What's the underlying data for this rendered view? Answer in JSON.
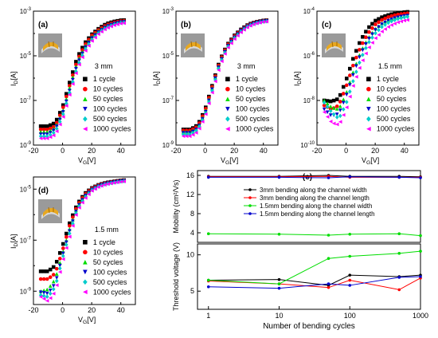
{
  "figure": {
    "colors": {
      "1 cycle": "#000000",
      "10 cycles": "#ff0000",
      "50 cycles": "#00dd00",
      "100 cycles": "#0000cc",
      "500 cycles": "#00cccc",
      "1000 cycles": "#ff00ff",
      "3mm bending along the channel width": "#000000",
      "3mm bending along the channel length": "#ff0000",
      "1.5mm bending along the channel width": "#00dd00",
      "1.5mm bending along the channel length": "#0000cc"
    },
    "markers": [
      "square",
      "circle",
      "triangle-up",
      "triangle-down",
      "diamond",
      "triangle-left"
    ],
    "legend_entries": [
      "1 cycle",
      "10 cycles",
      "50 cycles",
      "100 cycles",
      "500 cycles",
      "1000 cycles"
    ]
  },
  "chart_data": [
    {
      "type": "scatter",
      "panel_label": "(a)",
      "annotation": "3 mm",
      "xlabel": "V_G[V]",
      "ylabel": "I_D[A]",
      "y_scale": "log",
      "xlim": [
        -20,
        50
      ],
      "ylim": [
        1e-09,
        0.001
      ],
      "x_ticks": [
        "-20",
        "0",
        "20",
        "40"
      ],
      "y_ticks": [
        "10^-9",
        "10^-7",
        "10^-5",
        "10^-3"
      ],
      "legend": "lower-right",
      "series": [
        {
          "name": "1 cycle",
          "x": [
            -15,
            -10,
            -5,
            0,
            5,
            10,
            15,
            20,
            25,
            30,
            35,
            40,
            44
          ],
          "y": [
            7e-09,
            7e-09,
            1e-08,
            5e-08,
            7e-07,
            8e-06,
            3.5e-05,
            9e-05,
            0.00017,
            0.00027,
            0.00034,
            0.00039,
            0.0004
          ]
        },
        {
          "name": "10 cycles",
          "x": [
            -15,
            -10,
            -5,
            0,
            5,
            10,
            15,
            20,
            25,
            30,
            35,
            40,
            44
          ],
          "y": [
            5e-09,
            5e-09,
            7e-09,
            4e-08,
            5e-07,
            6e-06,
            2.8e-05,
            8e-05,
            0.00015,
            0.00024,
            0.00031,
            0.00036,
            0.00038
          ]
        },
        {
          "name": "50 cycles",
          "x": [
            -15,
            -10,
            -5,
            0,
            5,
            10,
            15,
            20,
            25,
            30,
            35,
            40,
            44
          ],
          "y": [
            4e-09,
            4e-09,
            6e-09,
            3e-08,
            4e-07,
            5e-06,
            2.4e-05,
            7e-05,
            0.00014,
            0.00022,
            0.00029,
            0.00034,
            0.00036
          ]
        },
        {
          "name": "100 cycles",
          "x": [
            -15,
            -10,
            -5,
            0,
            5,
            10,
            15,
            20,
            25,
            30,
            35,
            40,
            44
          ],
          "y": [
            3e-09,
            3e-09,
            5e-09,
            2.5e-08,
            3e-07,
            4e-06,
            2e-05,
            6e-05,
            0.00012,
            0.0002,
            0.00027,
            0.00032,
            0.00034
          ]
        },
        {
          "name": "500 cycles",
          "x": [
            -15,
            -10,
            -5,
            0,
            5,
            10,
            15,
            20,
            25,
            30,
            35,
            40,
            44
          ],
          "y": [
            2.5e-09,
            2.5e-09,
            4e-09,
            2e-08,
            2.5e-07,
            3e-06,
            1.7e-05,
            5e-05,
            0.00011,
            0.00018,
            0.00025,
            0.0003,
            0.00032
          ]
        },
        {
          "name": "1000 cycles",
          "x": [
            -15,
            -10,
            -5,
            0,
            5,
            10,
            15,
            20,
            25,
            30,
            35,
            40,
            44
          ],
          "y": [
            2e-09,
            2e-09,
            3e-09,
            1.5e-08,
            2e-07,
            2.5e-06,
            1.4e-05,
            4.5e-05,
            0.0001,
            0.00017,
            0.00023,
            0.00028,
            0.0003
          ]
        }
      ]
    },
    {
      "type": "scatter",
      "panel_label": "(b)",
      "annotation": "3 mm",
      "xlabel": "V_G[V]",
      "ylabel": "I_D[A]",
      "y_scale": "log",
      "xlim": [
        -20,
        50
      ],
      "ylim": [
        1e-09,
        0.001
      ],
      "x_ticks": [
        "-20",
        "0",
        "20",
        "40"
      ],
      "y_ticks": [
        "10^-9",
        "10^-7",
        "10^-5",
        "10^-3"
      ],
      "legend": "lower-right",
      "series": [
        {
          "name": "1 cycle",
          "x": [
            -15,
            -10,
            -5,
            0,
            5,
            10,
            15,
            20,
            25,
            30,
            35,
            40,
            44
          ],
          "y": [
            5e-09,
            5e-09,
            8e-09,
            4e-08,
            5e-07,
            6e-06,
            3e-05,
            8e-05,
            0.00016,
            0.00026,
            0.00033,
            0.00038,
            0.0004
          ]
        },
        {
          "name": "10 cycles",
          "x": [
            -15,
            -10,
            -5,
            0,
            5,
            10,
            15,
            20,
            25,
            30,
            35,
            40,
            44
          ],
          "y": [
            4.5e-09,
            4.5e-09,
            7e-09,
            3.5e-08,
            4.5e-07,
            5.5e-06,
            2.8e-05,
            7.5e-05,
            0.00015,
            0.00025,
            0.00032,
            0.00037,
            0.00039
          ]
        },
        {
          "name": "50 cycles",
          "x": [
            -15,
            -10,
            -5,
            0,
            5,
            10,
            15,
            20,
            25,
            30,
            35,
            40,
            44
          ],
          "y": [
            4e-09,
            4e-09,
            6e-09,
            3e-08,
            4e-07,
            5e-06,
            2.6e-05,
            7e-05,
            0.000145,
            0.00024,
            0.00031,
            0.00036,
            0.00038
          ]
        },
        {
          "name": "100 cycles",
          "x": [
            -15,
            -10,
            -5,
            0,
            5,
            10,
            15,
            20,
            25,
            30,
            35,
            40,
            44
          ],
          "y": [
            3.5e-09,
            3.5e-09,
            5.5e-09,
            2.5e-08,
            3.5e-07,
            4.5e-06,
            2.4e-05,
            6.5e-05,
            0.00014,
            0.00023,
            0.0003,
            0.00035,
            0.00037
          ]
        },
        {
          "name": "500 cycles",
          "x": [
            -15,
            -10,
            -5,
            0,
            5,
            10,
            15,
            20,
            25,
            30,
            35,
            40,
            44
          ],
          "y": [
            3e-09,
            3e-09,
            5e-09,
            2.2e-08,
            3e-07,
            4e-06,
            2.2e-05,
            6e-05,
            0.00013,
            0.00022,
            0.00029,
            0.00034,
            0.00036
          ]
        },
        {
          "name": "1000 cycles",
          "x": [
            -15,
            -10,
            -5,
            0,
            5,
            10,
            15,
            20,
            25,
            30,
            35,
            40,
            44
          ],
          "y": [
            2.5e-09,
            2.5e-09,
            4e-09,
            2e-08,
            2.5e-07,
            3.5e-06,
            2e-05,
            5.5e-05,
            0.00012,
            0.00021,
            0.00028,
            0.00033,
            0.00035
          ]
        }
      ]
    },
    {
      "type": "scatter",
      "panel_label": "(c)",
      "annotation": "1.5 mm",
      "xlabel": "V_G[V]",
      "ylabel": "I_D[A]",
      "y_scale": "log",
      "xlim": [
        -20,
        50
      ],
      "ylim": [
        1e-10,
        0.0001
      ],
      "x_ticks": [
        "-20",
        "0",
        "20",
        "40"
      ],
      "y_ticks": [
        "10^-10",
        "10^-8",
        "10^-6",
        "10^-4"
      ],
      "legend": "lower-right",
      "series": [
        {
          "name": "1 cycle",
          "x": [
            -15,
            -10,
            -5,
            0,
            5,
            10,
            15,
            20,
            25,
            30,
            35,
            40,
            44
          ],
          "y": [
            1e-08,
            9e-09,
            1.2e-08,
            8e-08,
            8e-07,
            5e-06,
            1.7e-05,
            3.7e-05,
            5.5e-05,
            7e-05,
            8.2e-05,
            9e-05,
            9.5e-05
          ]
        },
        {
          "name": "10 cycles",
          "x": [
            -15,
            -10,
            -5,
            0,
            5,
            10,
            15,
            20,
            25,
            30,
            35,
            40,
            44
          ],
          "y": [
            6e-09,
            4e-09,
            6e-09,
            4e-08,
            4e-07,
            2.5e-06,
            1e-05,
            2.5e-05,
            4.2e-05,
            5.8e-05,
            7e-05,
            7.8e-05,
            8.2e-05
          ]
        },
        {
          "name": "50 cycles",
          "x": [
            -15,
            -10,
            -5,
            0,
            5,
            10,
            15,
            20,
            25,
            30,
            35,
            40,
            44
          ],
          "y": [
            1e-08,
            5e-09,
            4e-09,
            2e-08,
            2e-07,
            1.5e-06,
            6e-06,
            1.6e-05,
            3e-05,
            4.3e-05,
            5.5e-05,
            6.3e-05,
            6.8e-05
          ]
        },
        {
          "name": "100 cycles",
          "x": [
            -15,
            -10,
            -5,
            0,
            5,
            10,
            15,
            20,
            25,
            30,
            35,
            40,
            44
          ],
          "y": [
            4e-09,
            2e-09,
            2.5e-09,
            1.5e-08,
            1.5e-07,
            1.2e-06,
            5e-06,
            1.4e-05,
            2.7e-05,
            4e-05,
            5.2e-05,
            6e-05,
            6.5e-05
          ]
        },
        {
          "name": "500 cycles",
          "x": [
            -15,
            -10,
            -5,
            0,
            5,
            10,
            15,
            20,
            25,
            30,
            35,
            40,
            44
          ],
          "y": [
            8e-09,
            3e-09,
            1.5e-09,
            7e-09,
            8e-08,
            7e-07,
            3.5e-06,
            1e-05,
            2.1e-05,
            3.3e-05,
            4.4e-05,
            5.3e-05,
            5.8e-05
          ]
        },
        {
          "name": "1000 cycles",
          "x": [
            -15,
            -10,
            -5,
            0,
            5,
            10,
            15,
            20,
            25,
            30,
            35,
            40,
            44
          ],
          "y": [
            3e-09,
            1e-09,
            8e-10,
            4e-09,
            5e-08,
            4e-07,
            2e-06,
            6e-06,
            1.3e-05,
            2.2e-05,
            3.1e-05,
            3.8e-05,
            4.2e-05
          ]
        }
      ]
    },
    {
      "type": "scatter",
      "panel_label": "(d)",
      "annotation": "1.5 mm",
      "xlabel": "V_G[V]",
      "ylabel": "I_D[A]",
      "y_scale": "log",
      "xlim": [
        -20,
        50
      ],
      "ylim": [
        3e-10,
        3e-05
      ],
      "x_ticks": [
        "-20",
        "0",
        "20",
        "40"
      ],
      "y_ticks": [
        "10^-9",
        "10^-7",
        "10^-5"
      ],
      "legend": "lower-right",
      "series": [
        {
          "name": "1 cycle",
          "x": [
            -15,
            -10,
            -5,
            0,
            5,
            10,
            15,
            20,
            25,
            30,
            35,
            40,
            44
          ],
          "y": [
            6e-09,
            6e-09,
            1e-08,
            6e-08,
            5e-07,
            2.5e-06,
            6.5e-06,
            1.1e-05,
            1.5e-05,
            1.8e-05,
            2e-05,
            2.2e-05,
            2.3e-05
          ]
        },
        {
          "name": "10 cycles",
          "x": [
            -15,
            -10,
            -5,
            0,
            5,
            10,
            15,
            20,
            25,
            30,
            35,
            40,
            44
          ],
          "y": [
            3e-09,
            3e-09,
            5e-09,
            4e-08,
            4e-07,
            2.2e-06,
            6e-06,
            1.05e-05,
            1.45e-05,
            1.75e-05,
            1.95e-05,
            2.15e-05,
            2.25e-05
          ]
        },
        {
          "name": "50 cycles",
          "x": [
            -15,
            -10,
            -5,
            0,
            5,
            10,
            15,
            20,
            25,
            30,
            35,
            40,
            44
          ],
          "y": [
            1e-09,
            1.2e-09,
            3e-09,
            3e-08,
            3e-07,
            2e-06,
            5.5e-06,
            1e-05,
            1.4e-05,
            1.7e-05,
            1.9e-05,
            2.1e-05,
            2.2e-05
          ]
        },
        {
          "name": "100 cycles",
          "x": [
            -15,
            -10,
            -5,
            0,
            5,
            10,
            15,
            20,
            25,
            30,
            35,
            40,
            44
          ],
          "y": [
            9e-10,
            8e-10,
            2e-09,
            2.5e-08,
            2.5e-07,
            1.8e-06,
            5e-06,
            9.5e-06,
            1.35e-05,
            1.65e-05,
            1.85e-05,
            2.05e-05,
            2.15e-05
          ]
        },
        {
          "name": "500 cycles",
          "x": [
            -15,
            -10,
            -5,
            0,
            5,
            10,
            15,
            20,
            25,
            30,
            35,
            40,
            44
          ],
          "y": [
            7e-10,
            6e-10,
            1.5e-09,
            2e-08,
            2e-07,
            1.6e-06,
            4.5e-06,
            9e-06,
            1.3e-05,
            1.6e-05,
            1.8e-05,
            2e-05,
            2.1e-05
          ]
        },
        {
          "name": "1000 cycles",
          "x": [
            -15,
            -10,
            -5,
            0,
            5,
            10,
            15,
            20,
            25,
            30,
            35,
            40,
            44
          ],
          "y": [
            6e-10,
            4e-10,
            1e-09,
            1.5e-08,
            1.5e-07,
            1.4e-06,
            4e-06,
            8.5e-06,
            1.25e-05,
            1.55e-05,
            1.75e-05,
            1.95e-05,
            2.05e-05
          ]
        }
      ]
    },
    {
      "type": "line",
      "panel_label": "(e)",
      "xlabel": "Number of bending cycles",
      "x_scale": "log",
      "xlim": [
        0.7,
        1000
      ],
      "x_ticks": [
        "1",
        "10",
        "100",
        "1000"
      ],
      "legend": "upper-right",
      "top": {
        "ylabel": "Mobility (cm²/Vs)",
        "ylim": [
          2,
          17
        ],
        "y_ticks": [
          "4",
          "8",
          "12",
          "16"
        ]
      },
      "bottom": {
        "ylabel": "Threshold voltage (V)",
        "ylim": [
          2.5,
          11.5
        ],
        "y_ticks": [
          "5",
          "10"
        ]
      },
      "x": [
        1,
        10,
        50,
        100,
        500,
        1000
      ],
      "series": [
        {
          "name": "3mm bending along the channel width",
          "mobility": [
            15.8,
            15.8,
            16.0,
            15.8,
            15.8,
            15.7
          ],
          "threshold": [
            6.5,
            6.6,
            5.8,
            7.2,
            7.0,
            7.2
          ]
        },
        {
          "name": "3mm bending along the channel length",
          "mobility": [
            15.7,
            15.7,
            15.8,
            15.6,
            15.6,
            15.6
          ],
          "threshold": [
            6.4,
            6.0,
            5.5,
            6.5,
            5.2,
            6.8
          ]
        },
        {
          "name": "1.5mm bending along the channel width",
          "mobility": [
            3.8,
            3.7,
            3.5,
            3.7,
            3.8,
            3.4
          ],
          "threshold": [
            6.5,
            6.0,
            9.5,
            9.8,
            10.2,
            10.5
          ]
        },
        {
          "name": "1.5mm bending along the channel length",
          "mobility": [
            15.6,
            15.6,
            15.5,
            15.7,
            15.6,
            15.5
          ],
          "threshold": [
            5.6,
            5.4,
            6.0,
            5.8,
            6.9,
            7.0
          ]
        }
      ]
    }
  ]
}
